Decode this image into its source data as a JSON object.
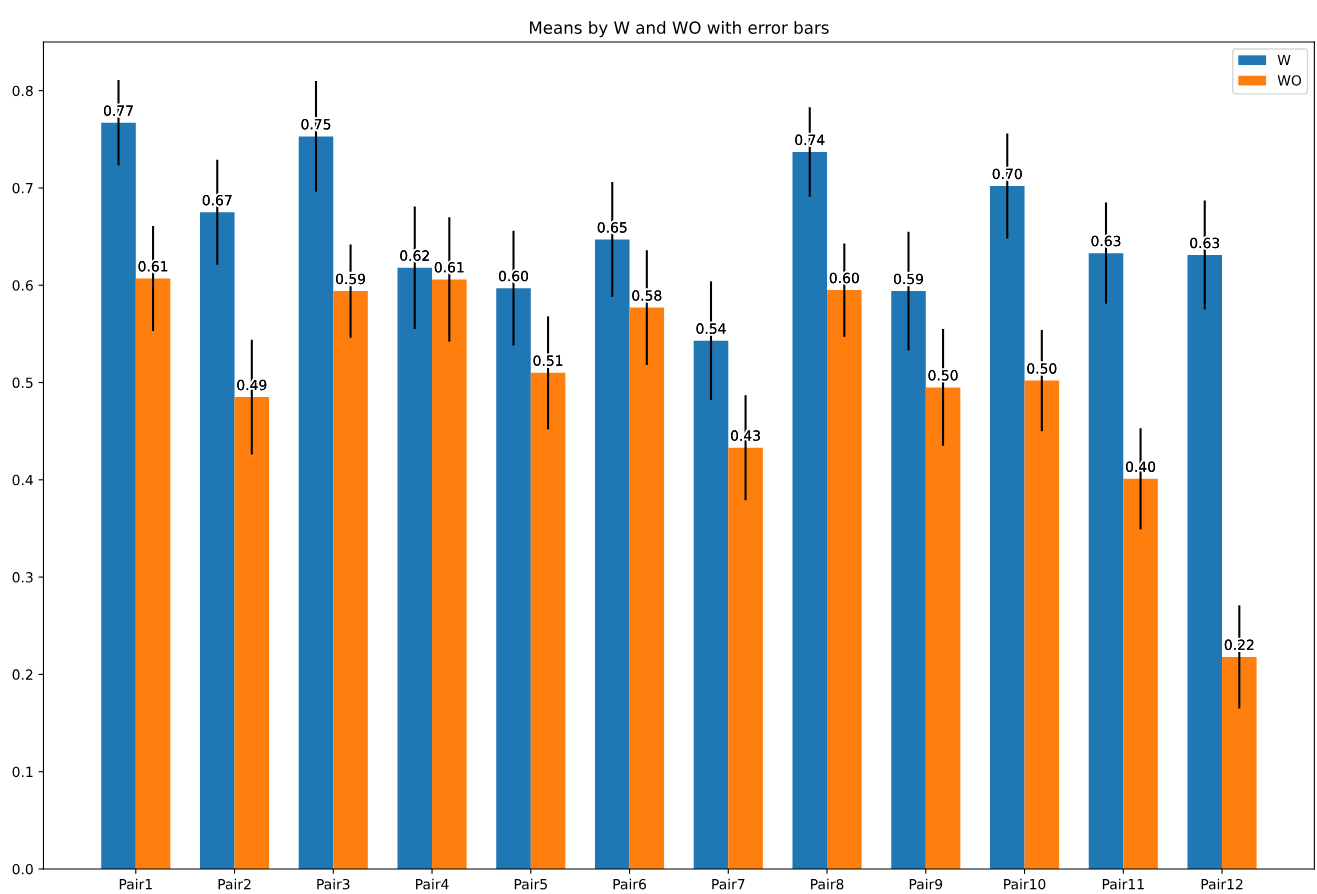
{
  "chart_data": {
    "type": "bar",
    "title": "Means by W and WO with error bars",
    "categories": [
      "Pair1",
      "Pair2",
      "Pair3",
      "Pair4",
      "Pair5",
      "Pair6",
      "Pair7",
      "Pair8",
      "Pair9",
      "Pair10",
      "Pair11",
      "Pair12"
    ],
    "series": [
      {
        "name": "W",
        "color": "#1f77b4",
        "values": [
          0.767,
          0.675,
          0.753,
          0.618,
          0.597,
          0.647,
          0.543,
          0.737,
          0.594,
          0.702,
          0.633,
          0.631
        ],
        "errors": [
          0.044,
          0.054,
          0.057,
          0.063,
          0.059,
          0.059,
          0.061,
          0.046,
          0.061,
          0.054,
          0.052,
          0.056
        ],
        "value_labels": [
          "0.77",
          "0.67",
          "0.75",
          "0.62",
          "0.60",
          "0.65",
          "0.54",
          "0.74",
          "0.59",
          "0.70",
          "0.63",
          "0.63"
        ]
      },
      {
        "name": "WO",
        "color": "#ff7f0e",
        "values": [
          0.607,
          0.485,
          0.594,
          0.606,
          0.51,
          0.577,
          0.433,
          0.595,
          0.495,
          0.502,
          0.401,
          0.218
        ],
        "errors": [
          0.054,
          0.059,
          0.048,
          0.064,
          0.058,
          0.059,
          0.054,
          0.048,
          0.06,
          0.052,
          0.052,
          0.053
        ],
        "value_labels": [
          "0.61",
          "0.49",
          "0.59",
          "0.61",
          "0.51",
          "0.58",
          "0.43",
          "0.60",
          "0.50",
          "0.50",
          "0.40",
          "0.22"
        ]
      }
    ],
    "ylim": [
      0,
      0.85
    ],
    "yticks": [
      {
        "value": 0,
        "label": "0.0"
      },
      0.1,
      0.2,
      0.3,
      0.4,
      0.5,
      0.6,
      0.7,
      0.8
    ],
    "grid": false,
    "legend": "top right"
  }
}
